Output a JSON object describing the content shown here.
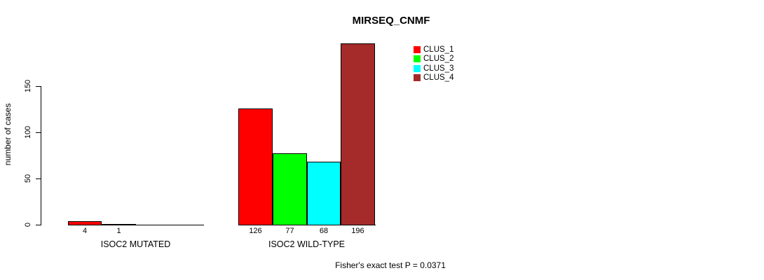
{
  "chart_data": {
    "type": "bar",
    "title": "MIRSEQ_CNMF",
    "ylabel": "number of cases",
    "xlabel": "",
    "ylim": [
      0,
      150
    ],
    "yticks": [
      0,
      50,
      100,
      150
    ],
    "grid": false,
    "legend_position": "top-right",
    "categories": [
      "ISOC2 MUTATED",
      "ISOC2 WILD-TYPE"
    ],
    "series": [
      {
        "name": "CLUS_1",
        "color": "#FF0000",
        "values": [
          4,
          126
        ]
      },
      {
        "name": "CLUS_2",
        "color": "#00FF00",
        "values": [
          1,
          77
        ]
      },
      {
        "name": "CLUS_3",
        "color": "#00FFFF",
        "values": [
          0,
          68
        ]
      },
      {
        "name": "CLUS_4",
        "color": "#A52A2A",
        "values": [
          0,
          196
        ]
      }
    ],
    "bar_value_labels": [
      [
        "4",
        "1",
        "",
        ""
      ],
      [
        "126",
        "77",
        "68",
        "196"
      ]
    ],
    "annotation": "Fisher's exact test P = 0.0371"
  }
}
